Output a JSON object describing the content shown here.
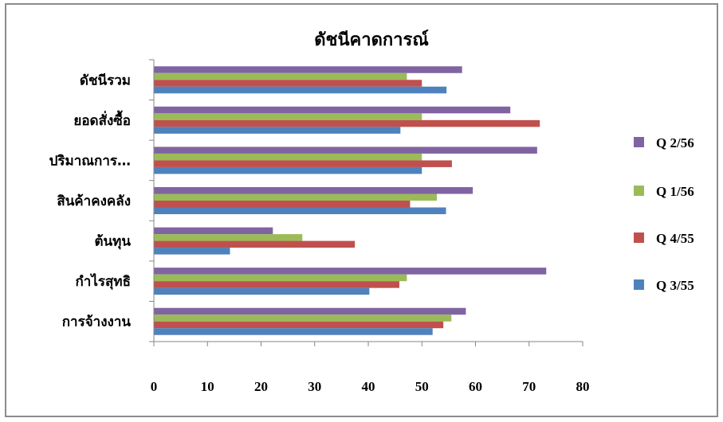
{
  "chart_data": {
    "type": "bar",
    "orientation": "horizontal",
    "title": "ดัชนีคาดการณ์",
    "categories": [
      "ดัชนีรวม",
      "ยอดสั่งซื้อ",
      "ปริมาณการ…",
      "สินค้าคงคลัง",
      "ต้นทุน",
      "กำไรสุทธิ",
      "การจ้างงาน"
    ],
    "series": [
      {
        "name": "Q 2/56",
        "color": "#8064a2",
        "values": [
          57.5,
          66.5,
          71.5,
          59.5,
          22.2,
          73.2,
          58.2
        ]
      },
      {
        "name": "Q 1/56",
        "color": "#9bbb59",
        "values": [
          47.2,
          50.0,
          50.0,
          52.8,
          27.7,
          47.2,
          55.5
        ]
      },
      {
        "name": "Q 4/55",
        "color": "#c0504d",
        "values": [
          50.0,
          72.0,
          55.6,
          47.8,
          37.5,
          45.8,
          54.0
        ]
      },
      {
        "name": "Q 3/55",
        "color": "#4f81bd",
        "values": [
          54.6,
          46.0,
          50.0,
          54.5,
          14.2,
          40.2,
          52.0
        ]
      }
    ],
    "xlim": [
      0,
      80
    ],
    "xticks": [
      "0",
      "10",
      "20",
      "30",
      "40",
      "50",
      "60",
      "70",
      "80"
    ],
    "xlabel": "",
    "ylabel": "",
    "grid": false,
    "legend_position": "right"
  }
}
